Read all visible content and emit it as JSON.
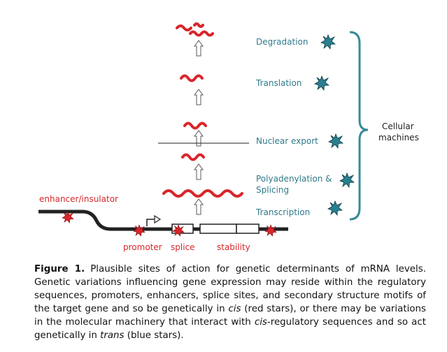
{
  "steps": {
    "degradation": "Degradation",
    "translation": "Translation",
    "nuclear_export": "Nuclear export",
    "polyadenylation": "Polyadenylation &",
    "splicing": "Splicing",
    "transcription": "Transcription"
  },
  "machines": {
    "line1": "Cellular",
    "line2": "machines"
  },
  "gene_labels": {
    "enhancer": "enhancer/insulator",
    "promoter": "promoter",
    "splice": "splice",
    "stability": "stability"
  },
  "caption": {
    "label": "Figure 1.",
    "text1": "Plausible sites of action for genetic determinants of mRNA levels. Genetic variations influencing gene expression may reside within the regulatory sequences, promoters, enhancers, splice sites, and secondary structure motifs of the target gene and so be genetically in ",
    "cis": "cis",
    "text2": " (red stars), or there may be variations in the molecular machinery that interact with ",
    "cis2": "cis",
    "text3": "-regulatory sequences and so act genetically in ",
    "trans": "trans",
    "text4": " (blue stars)."
  },
  "colors": {
    "mrna": "#d8262a",
    "teal": "#2f7a8a",
    "blue_star": "#2a8a9a",
    "red_star": "#d8262a",
    "dna": "#222222"
  }
}
